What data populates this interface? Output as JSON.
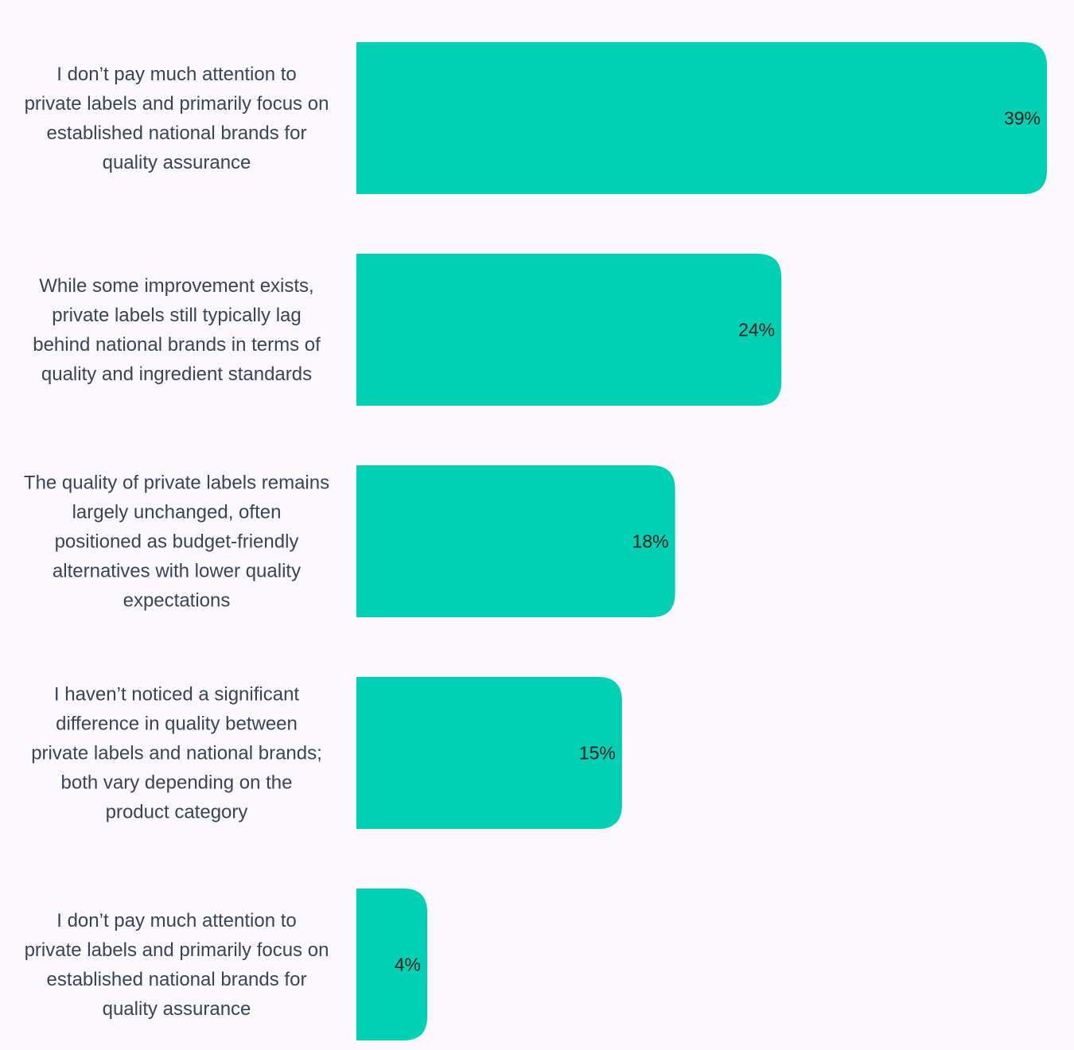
{
  "colors": {
    "bar": "#00d1b5",
    "background": "#fbf9fe",
    "category_text": "#3a4458",
    "value_text": "#1b1b1b"
  },
  "chart_data": {
    "type": "bar",
    "orientation": "horizontal",
    "title": "",
    "xlabel": "",
    "ylabel": "",
    "grid": false,
    "legend": "none",
    "xlim": [
      0,
      39
    ],
    "categories": [
      [
        "I don’t pay much attention to",
        "private labels and primarily focus on",
        "established national brands for",
        "quality assurance"
      ],
      [
        "While some improvement exists,",
        "private labels still typically lag",
        "behind national brands in terms of",
        "quality and ingredient standards"
      ],
      [
        "The quality of private labels remains",
        "largely unchanged, often",
        "positioned as budget-friendly",
        "alternatives with lower quality",
        "expectations"
      ],
      [
        "I haven’t noticed a significant",
        "difference in quality between",
        "private labels and national brands;",
        "both vary depending on the",
        "product category"
      ],
      [
        "I don’t pay much attention to",
        "private labels and primarily focus on",
        "established national brands for",
        "quality assurance"
      ]
    ],
    "values": [
      39,
      24,
      18,
      15,
      4
    ],
    "value_labels": [
      "39%",
      "24%",
      "18%",
      "15%",
      "4%"
    ]
  }
}
